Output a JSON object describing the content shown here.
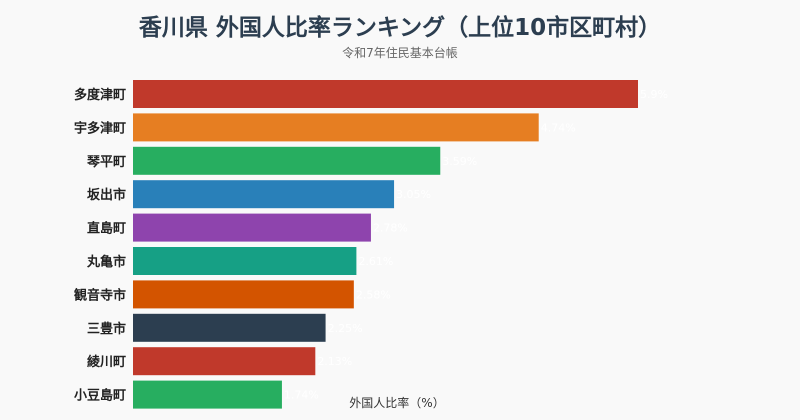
{
  "chart_data": {
    "type": "bar",
    "orientation": "horizontal",
    "title": "香川県 外国人比率ランキング（上位10市区町村）",
    "subtitle": "令和7年住民基本台帳",
    "xlabel": "外国人比率（%）",
    "ylabel": "",
    "xlim": [
      0,
      7.2
    ],
    "grid": false,
    "categories": [
      "多度津町",
      "宇多津町",
      "琴平町",
      "坂出市",
      "直島町",
      "丸亀市",
      "観音寺市",
      "三豊市",
      "綾川町",
      "小豆島町"
    ],
    "values": [
      5.9,
      4.74,
      3.59,
      3.05,
      2.78,
      2.61,
      2.58,
      2.25,
      2.13,
      1.74
    ],
    "value_labels": [
      "5.9%",
      "4.74%",
      "3.59%",
      "3.05%",
      "2.78%",
      "2.61%",
      "2.58%",
      "2.25%",
      "2.13%",
      "1.74%"
    ],
    "colors": [
      "#c0392b",
      "#e67e22",
      "#27ae60",
      "#2980b9",
      "#8e44ad",
      "#16a085",
      "#d35400",
      "#2c3e50",
      "#c0392b",
      "#27ae60"
    ]
  }
}
